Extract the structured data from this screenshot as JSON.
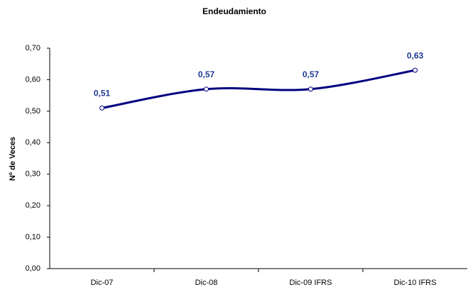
{
  "chart_data": {
    "type": "line",
    "title": "Endeudamiento",
    "y_label": "Nº de Veces",
    "categories": [
      "Dic-07",
      "Dic-08",
      "Dic-09 IFRS",
      "Dic-10 IFRS"
    ],
    "values": [
      0.51,
      0.57,
      0.57,
      0.63
    ],
    "value_labels": [
      "0,51",
      "0,57",
      "0,57",
      "0,63"
    ],
    "color": "#000080",
    "ylim": [
      0,
      0.7
    ],
    "yticks": [
      {
        "value": 0,
        "label": "0,00"
      },
      {
        "value": 0.1,
        "label": "0,10"
      },
      {
        "value": 0.2,
        "label": "0,20"
      },
      {
        "value": 0.3,
        "label": "0,30"
      },
      {
        "value": 0.4,
        "label": "0,40"
      },
      {
        "value": 0.5,
        "label": "0,50"
      },
      {
        "value": 0.6,
        "label": "0,60"
      },
      {
        "value": 0.7,
        "label": "0,70"
      }
    ],
    "grid": false
  }
}
